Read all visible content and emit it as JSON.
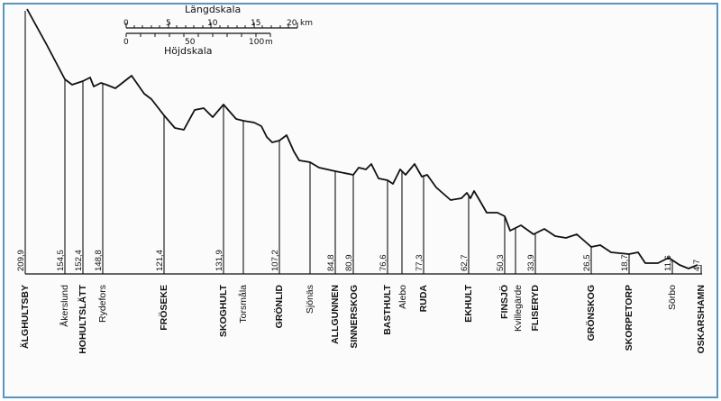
{
  "scale": {
    "length_title": "Längdskala",
    "height_title": "Höjdskala",
    "length_ticks": [
      "0",
      "5",
      "10",
      "15",
      "20"
    ],
    "length_unit": "km",
    "height_ticks": [
      "0",
      "50",
      "100"
    ],
    "height_unit": "m"
  },
  "stations": [
    {
      "name": "ÄLGHULTSBY",
      "elevation": "209,9",
      "major": true
    },
    {
      "name": "Åkerslund",
      "elevation": "154,5",
      "major": false
    },
    {
      "name": "HOHULTSLÄTT",
      "elevation": "152,4",
      "major": true
    },
    {
      "name": "Rydefors",
      "elevation": "148,8",
      "major": false
    },
    {
      "name": "FRÖSEKE",
      "elevation": "121,4",
      "major": true
    },
    {
      "name": "SKOGHULT",
      "elevation": "131,9",
      "major": true
    },
    {
      "name": "Torsmåla",
      "elevation": "",
      "major": false
    },
    {
      "name": "GRÖNLID",
      "elevation": "107,2",
      "major": true
    },
    {
      "name": "Sjönäs",
      "elevation": "",
      "major": false
    },
    {
      "name": "ALLGUNNEN",
      "elevation": "84,8",
      "major": true
    },
    {
      "name": "SINNERSKOG",
      "elevation": "80,9",
      "major": true
    },
    {
      "name": "BASTHULT",
      "elevation": "76,6",
      "major": true
    },
    {
      "name": "Alebo",
      "elevation": "",
      "major": false
    },
    {
      "name": "RUDA",
      "elevation": "77,3",
      "major": true
    },
    {
      "name": "EKHULT",
      "elevation": "62,7",
      "major": true
    },
    {
      "name": "FINSJÖ",
      "elevation": "50,3",
      "major": true
    },
    {
      "name": "Kvillegärde",
      "elevation": "",
      "major": false
    },
    {
      "name": "FLISERYD",
      "elevation": "33,9",
      "major": true
    },
    {
      "name": "GRÖNSKOG",
      "elevation": "26,5",
      "major": true
    },
    {
      "name": "SKORPETORP",
      "elevation": "18,7",
      "major": true
    },
    {
      "name": "Sörbo",
      "elevation": "11,6",
      "major": false
    },
    {
      "name": "OSKARSHAMN",
      "elevation": "4,7",
      "major": true
    }
  ]
}
